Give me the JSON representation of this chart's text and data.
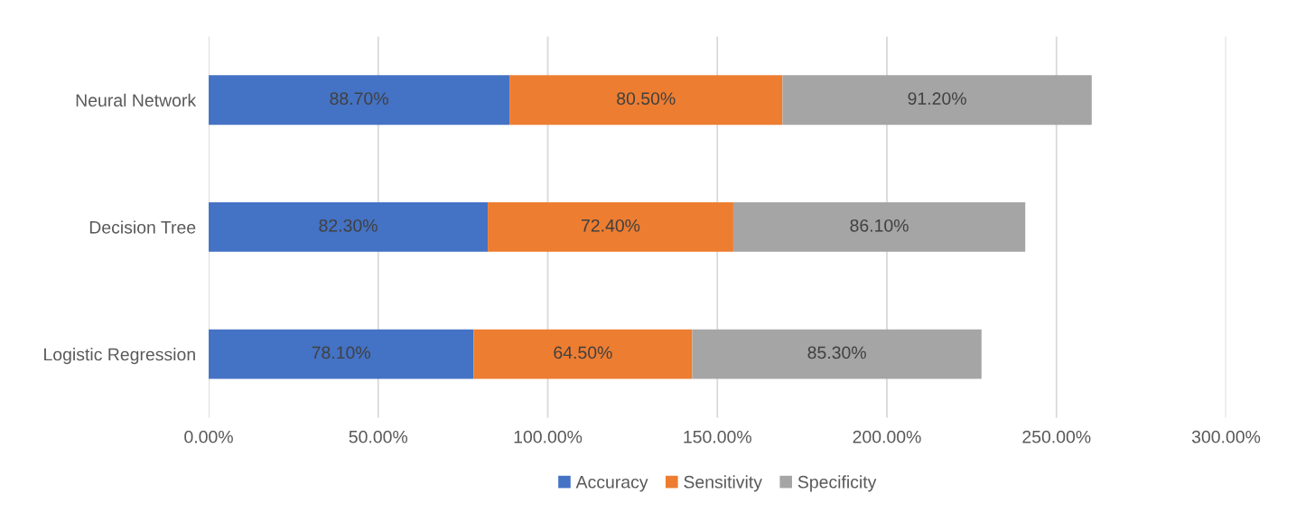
{
  "chart_data": {
    "type": "bar",
    "orientation": "horizontal",
    "stacked": true,
    "categories": [
      "Neural Network",
      "Decision Tree",
      "Logistic Regression"
    ],
    "series": [
      {
        "name": "Accuracy",
        "color": "#4472c4",
        "values": [
          88.7,
          82.3,
          78.1
        ],
        "value_labels": [
          "88.70%",
          "82.30%",
          "78.10%"
        ]
      },
      {
        "name": "Sensitivity",
        "color": "#ed7d31",
        "values": [
          80.5,
          72.4,
          64.5
        ],
        "value_labels": [
          "80.50%",
          "72.40%",
          "64.50%"
        ]
      },
      {
        "name": "Specificity",
        "color": "#a5a5a5",
        "values": [
          91.2,
          86.1,
          85.3
        ],
        "value_labels": [
          "91.20%",
          "86.10%",
          "85.30%"
        ]
      }
    ],
    "xlim": [
      0,
      300
    ],
    "xticks": [
      {
        "value": 0,
        "label": "0.00%"
      },
      {
        "value": 50,
        "label": "50.00%"
      },
      {
        "value": 100,
        "label": "100.00%"
      },
      {
        "value": 150,
        "label": "150.00%"
      },
      {
        "value": 200,
        "label": "200.00%"
      },
      {
        "value": 250,
        "label": "250.00%"
      },
      {
        "value": 300,
        "label": "300.00%"
      }
    ],
    "grid": "x",
    "legend": "bottom"
  }
}
